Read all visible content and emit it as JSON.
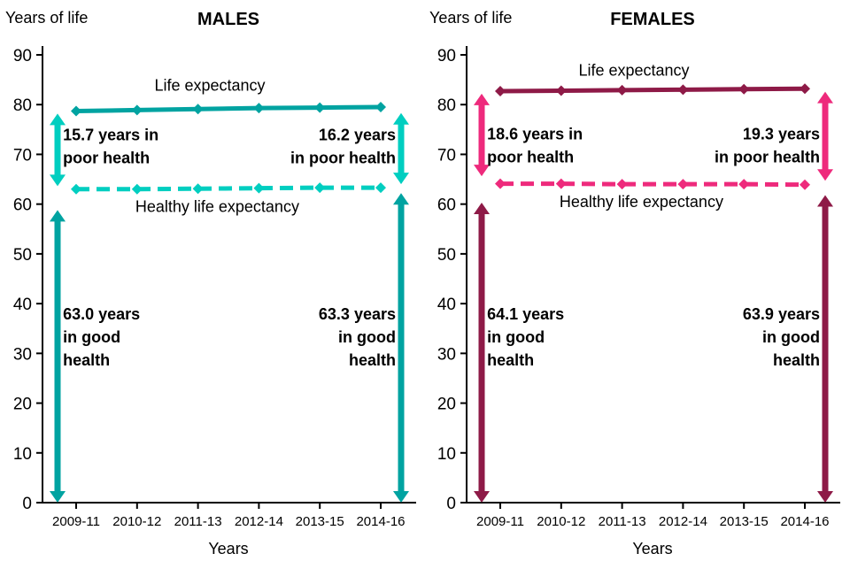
{
  "page": {
    "background": "#ffffff"
  },
  "chart_data": [
    {
      "type": "line",
      "panel": "males",
      "title": "MALES",
      "y_axis_title": "Years of life",
      "x_axis_title": "Years",
      "ylim": [
        0,
        90
      ],
      "y_tick_step": 10,
      "grid": false,
      "legend_position": "none",
      "categories": [
        "2009-11",
        "2010-12",
        "2011-13",
        "2012-14",
        "2013-15",
        "2014-16"
      ],
      "series": [
        {
          "name": "Life expectancy",
          "style": "solid",
          "color": "#00A3A1",
          "values": [
            78.7,
            78.9,
            79.1,
            79.3,
            79.4,
            79.5
          ]
        },
        {
          "name": "Healthy life expectancy",
          "style": "dashed",
          "color": "#00CEC0",
          "values": [
            63.0,
            63.0,
            63.1,
            63.2,
            63.3,
            63.3
          ]
        }
      ],
      "annotations": [
        {
          "lines": [
            "Life expectancy"
          ],
          "x_frac": 0.45,
          "y": 82.8,
          "align": "middle",
          "bold": false
        },
        {
          "lines": [
            "15.7 years in",
            "poor health"
          ],
          "x_frac": 0.055,
          "y": 72.8,
          "align": "start",
          "bold": true
        },
        {
          "lines": [
            "16.2 years",
            "in poor health"
          ],
          "x_frac": 0.95,
          "y": 72.8,
          "align": "end",
          "bold": true
        },
        {
          "lines": [
            "Healthy life expectancy"
          ],
          "x_frac": 0.47,
          "y": 58.4,
          "align": "middle",
          "bold": false
        },
        {
          "lines": [
            "63.0 years",
            "in good",
            "health"
          ],
          "x_frac": 0.055,
          "y": 36.8,
          "align": "start",
          "bold": true
        },
        {
          "lines": [
            "63.3 years",
            "in good",
            "health"
          ],
          "x_frac": 0.95,
          "y": 36.8,
          "align": "end",
          "bold": true
        }
      ],
      "arrows": [
        {
          "side": "left",
          "kind": "poor",
          "from": 63.6,
          "to": 78.2
        },
        {
          "side": "left",
          "kind": "good",
          "from": 0,
          "to": 58.8
        },
        {
          "side": "right",
          "kind": "poor",
          "from": 64.0,
          "to": 78.3
        },
        {
          "side": "right",
          "kind": "good",
          "from": 0,
          "to": 62.2
        }
      ]
    },
    {
      "type": "line",
      "panel": "females",
      "title": "FEMALES",
      "y_axis_title": "Years of life",
      "x_axis_title": "Years",
      "ylim": [
        0,
        90
      ],
      "y_tick_step": 10,
      "grid": false,
      "legend_position": "none",
      "categories": [
        "2009-11",
        "2010-12",
        "2011-13",
        "2012-14",
        "2013-15",
        "2014-16"
      ],
      "series": [
        {
          "name": "Life expectancy",
          "style": "solid",
          "color": "#8E1A47",
          "values": [
            82.7,
            82.8,
            82.9,
            83.0,
            83.1,
            83.2
          ]
        },
        {
          "name": "Healthy life expectancy",
          "style": "dashed",
          "color": "#EE2A7C",
          "values": [
            64.1,
            64.1,
            64.0,
            64.0,
            64.0,
            63.9
          ]
        }
      ],
      "annotations": [
        {
          "lines": [
            "Life expectancy"
          ],
          "x_frac": 0.45,
          "y": 85.8,
          "align": "middle",
          "bold": false
        },
        {
          "lines": [
            "18.6 years in",
            "poor health"
          ],
          "x_frac": 0.055,
          "y": 73.0,
          "align": "start",
          "bold": true
        },
        {
          "lines": [
            "19.3 years",
            "in poor health"
          ],
          "x_frac": 0.95,
          "y": 73.0,
          "align": "end",
          "bold": true
        },
        {
          "lines": [
            "Healthy life expectancy"
          ],
          "x_frac": 0.47,
          "y": 59.4,
          "align": "middle",
          "bold": false
        },
        {
          "lines": [
            "64.1 years",
            "in good",
            "health"
          ],
          "x_frac": 0.055,
          "y": 36.8,
          "align": "start",
          "bold": true
        },
        {
          "lines": [
            "63.9 years",
            "in good",
            "health"
          ],
          "x_frac": 0.95,
          "y": 36.8,
          "align": "end",
          "bold": true
        }
      ],
      "arrows": [
        {
          "side": "left",
          "kind": "poor",
          "from": 65.6,
          "to": 82.2
        },
        {
          "side": "left",
          "kind": "good",
          "from": 0,
          "to": 60.3
        },
        {
          "side": "right",
          "kind": "poor",
          "from": 64.7,
          "to": 82.6
        },
        {
          "side": "right",
          "kind": "good",
          "from": 0,
          "to": 61.8
        }
      ]
    }
  ]
}
